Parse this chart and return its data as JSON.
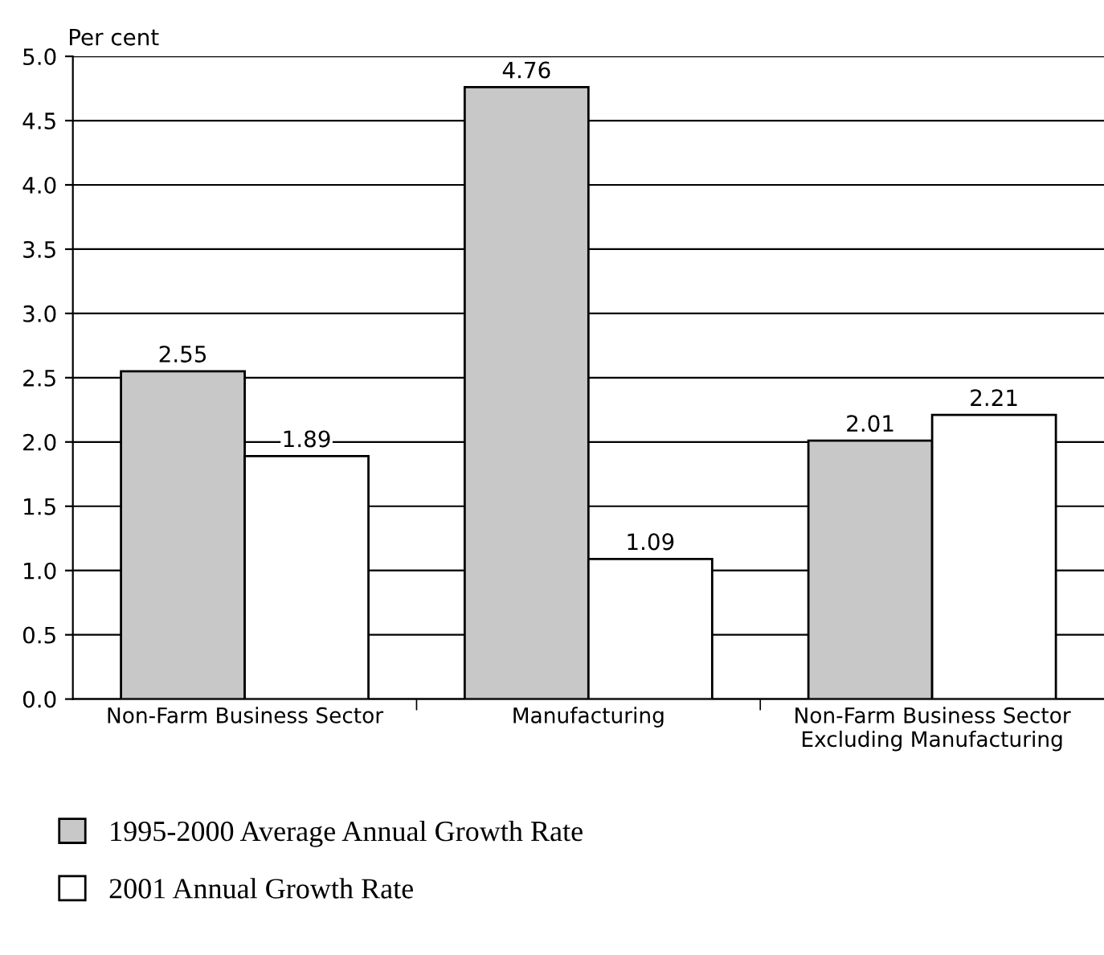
{
  "chart_data": {
    "type": "bar",
    "ylabel": "Per cent",
    "categories": [
      "Non-Farm Business Sector",
      "Manufacturing",
      "Non-Farm Business Sector\nExcluding Manufacturing"
    ],
    "series": [
      {
        "name": "1995-2000 Average Annual Growth Rate",
        "color": "#c8c8c8",
        "values": [
          2.55,
          4.76,
          2.01
        ]
      },
      {
        "name": "2001 Annual Growth Rate",
        "color": "#ffffff",
        "values": [
          1.89,
          1.09,
          2.21
        ]
      }
    ],
    "ylim": [
      0,
      5
    ],
    "yticks": [
      "0.0",
      "0.5",
      "1.0",
      "1.5",
      "2.0",
      "2.5",
      "3.0",
      "3.5",
      "4.0",
      "4.5",
      "5.0"
    ],
    "grid": "y",
    "legend": "bottom",
    "data_labels": true
  }
}
